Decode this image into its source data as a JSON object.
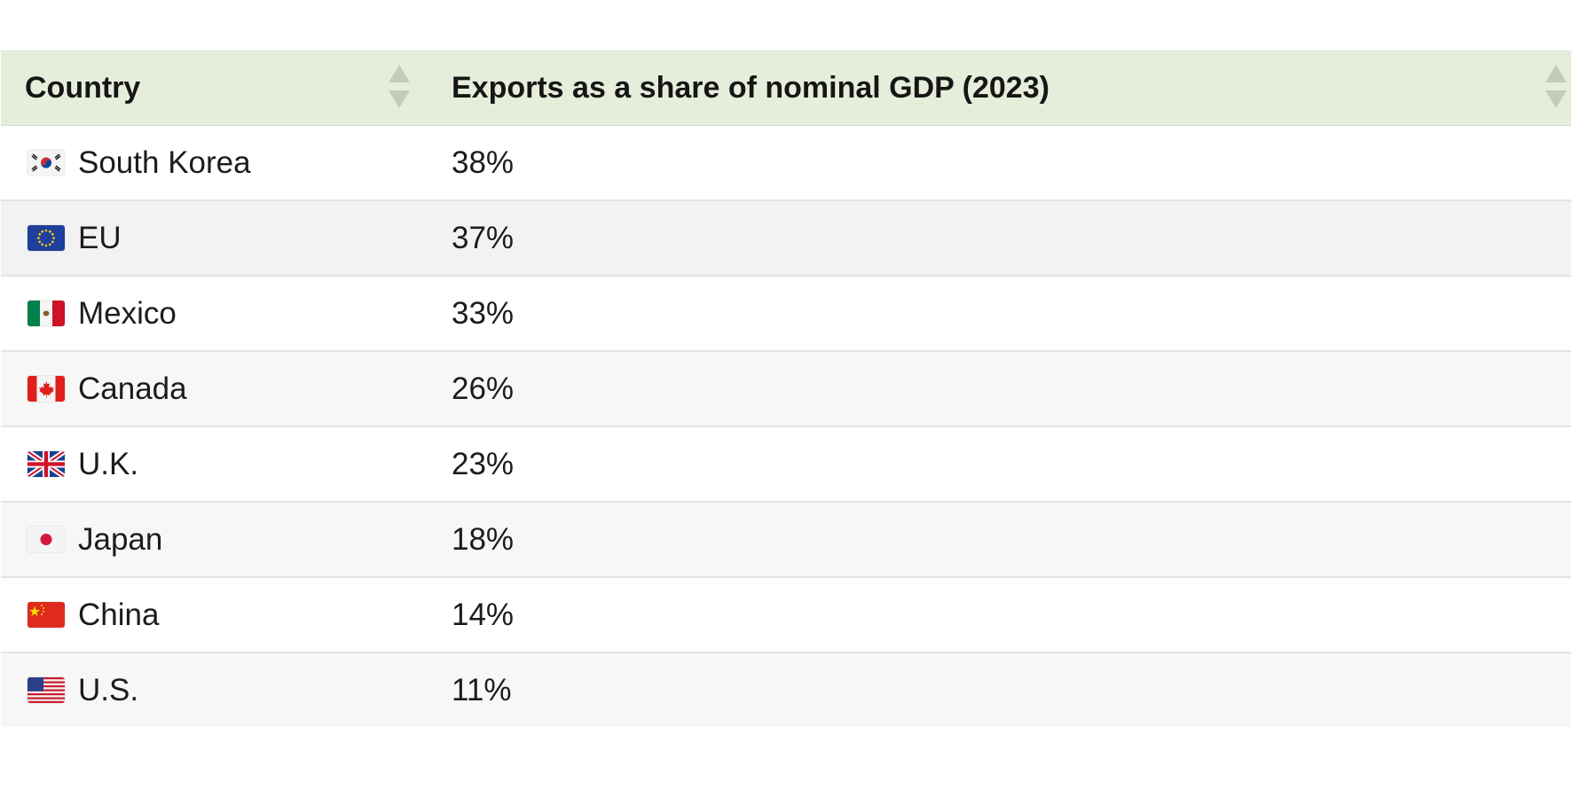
{
  "chart_data": {
    "type": "table",
    "columns": [
      "Country",
      "Exports as a share of nominal GDP (2023)"
    ],
    "rows": [
      {
        "country": "South Korea",
        "flag": "south-korea-flag",
        "value": "38%"
      },
      {
        "country": "EU",
        "flag": "eu-flag",
        "value": "37%"
      },
      {
        "country": "Mexico",
        "flag": "mexico-flag",
        "value": "33%"
      },
      {
        "country": "Canada",
        "flag": "canada-flag",
        "value": "26%"
      },
      {
        "country": "U.K.",
        "flag": "uk-flag",
        "value": "23%"
      },
      {
        "country": "Japan",
        "flag": "japan-flag",
        "value": "18%"
      },
      {
        "country": "China",
        "flag": "china-flag",
        "value": "14%"
      },
      {
        "country": "U.S.",
        "flag": "us-flag",
        "value": "11%"
      }
    ]
  },
  "colors": {
    "header_bg": "#e6eedb",
    "sort_arrow": "#c3ccbc",
    "row_odd": "#ffffff",
    "row_even": "#f7f7f7",
    "divider": "#e3e3e3"
  },
  "icons": {
    "sort": "sort-arrows-icon"
  }
}
